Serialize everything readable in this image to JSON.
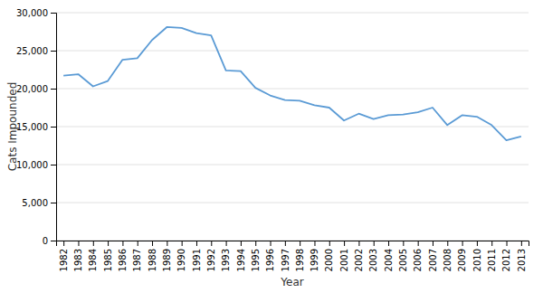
{
  "chart_data": {
    "type": "line",
    "xlabel": "Year",
    "ylabel": "Cats Impounded",
    "x": [
      1982,
      1983,
      1984,
      1985,
      1986,
      1987,
      1988,
      1989,
      1990,
      1991,
      1992,
      1993,
      1994,
      1995,
      1996,
      1997,
      1998,
      1999,
      2000,
      2001,
      2002,
      2003,
      2004,
      2005,
      2006,
      2007,
      2008,
      2009,
      2010,
      2011,
      2012,
      2013
    ],
    "values": [
      21700,
      21900,
      20300,
      21000,
      23800,
      24000,
      26400,
      28100,
      28000,
      27300,
      27000,
      22400,
      22300,
      20100,
      19100,
      18500,
      18400,
      17800,
      17500,
      15800,
      16700,
      16000,
      16500,
      16600,
      16900,
      17500,
      15200,
      16500,
      16300,
      15200,
      13200,
      13700
    ],
    "color": "#5B9BD5",
    "xlim": [
      1981.5,
      2013.5
    ],
    "xticks": [
      1982,
      1983,
      1984,
      1985,
      1986,
      1987,
      1988,
      1989,
      1990,
      1991,
      1992,
      1993,
      1994,
      1995,
      1996,
      1997,
      1998,
      1999,
      2000,
      2001,
      2002,
      2003,
      2004,
      2005,
      2006,
      2007,
      2008,
      2009,
      2010,
      2011,
      2012,
      2013
    ],
    "ylim": [
      0,
      30000
    ],
    "yticks": [
      0,
      {
        "value": 5000,
        "label": "5,000"
      },
      {
        "value": 10000,
        "label": "10,000"
      },
      {
        "value": 15000,
        "label": "15,000"
      },
      {
        "value": 20000,
        "label": "20,000"
      },
      {
        "value": 25000,
        "label": "25,000"
      },
      {
        "value": 30000,
        "label": "30,000"
      }
    ],
    "grid": true
  }
}
